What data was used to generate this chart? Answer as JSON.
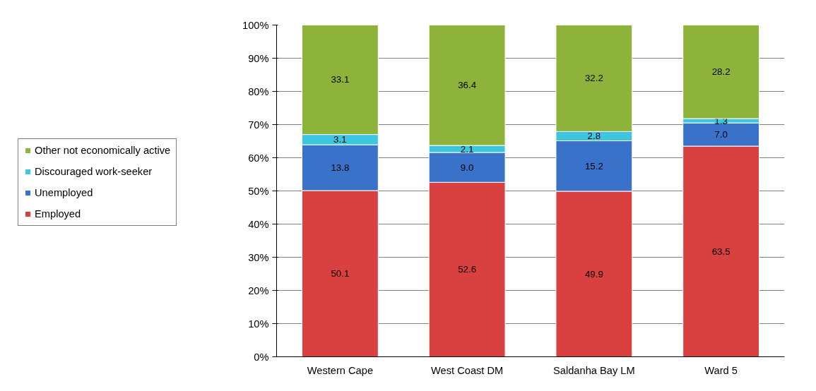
{
  "chart_data": {
    "type": "bar",
    "stacked": true,
    "categories": [
      "Western Cape",
      "West Coast DM",
      "Saldanha Bay LM",
      "Ward 5"
    ],
    "series": [
      {
        "name": "Employed",
        "color": "#d94040",
        "values": [
          50.1,
          52.6,
          49.9,
          63.5
        ],
        "value_labels": [
          "50.1",
          "52.6",
          "49.9",
          "63.5"
        ]
      },
      {
        "name": "Unemployed",
        "color": "#3b72c9",
        "values": [
          13.8,
          9.0,
          15.2,
          7.0
        ],
        "value_labels": [
          "13.8",
          "9.0",
          "15.2",
          "7.0"
        ]
      },
      {
        "name": "Discouraged work-seeker",
        "color": "#3cc6e0",
        "values": [
          3.1,
          2.1,
          2.8,
          1.3
        ],
        "value_labels": [
          "3.1",
          "2.1",
          "2.8",
          "1.3"
        ]
      },
      {
        "name": "Other not economically active",
        "color": "#8db33a",
        "values": [
          33.1,
          36.4,
          32.2,
          28.2
        ],
        "value_labels": [
          "33.1",
          "36.4",
          "32.2",
          "28.2"
        ]
      }
    ],
    "ylim": [
      0,
      100
    ],
    "yticks": [
      {
        "value": 0,
        "label": "0%"
      },
      {
        "value": 10,
        "label": "10%"
      },
      {
        "value": 20,
        "label": "20%"
      },
      {
        "value": 30,
        "label": "30%"
      },
      {
        "value": 40,
        "label": "40%"
      },
      {
        "value": 50,
        "label": "50%"
      },
      {
        "value": 60,
        "label": "60%"
      },
      {
        "value": 70,
        "label": "70%"
      },
      {
        "value": 80,
        "label": "80%"
      },
      {
        "value": 90,
        "label": "90%"
      },
      {
        "value": 100,
        "label": "100%"
      }
    ],
    "grid": "y",
    "legend": "left"
  }
}
